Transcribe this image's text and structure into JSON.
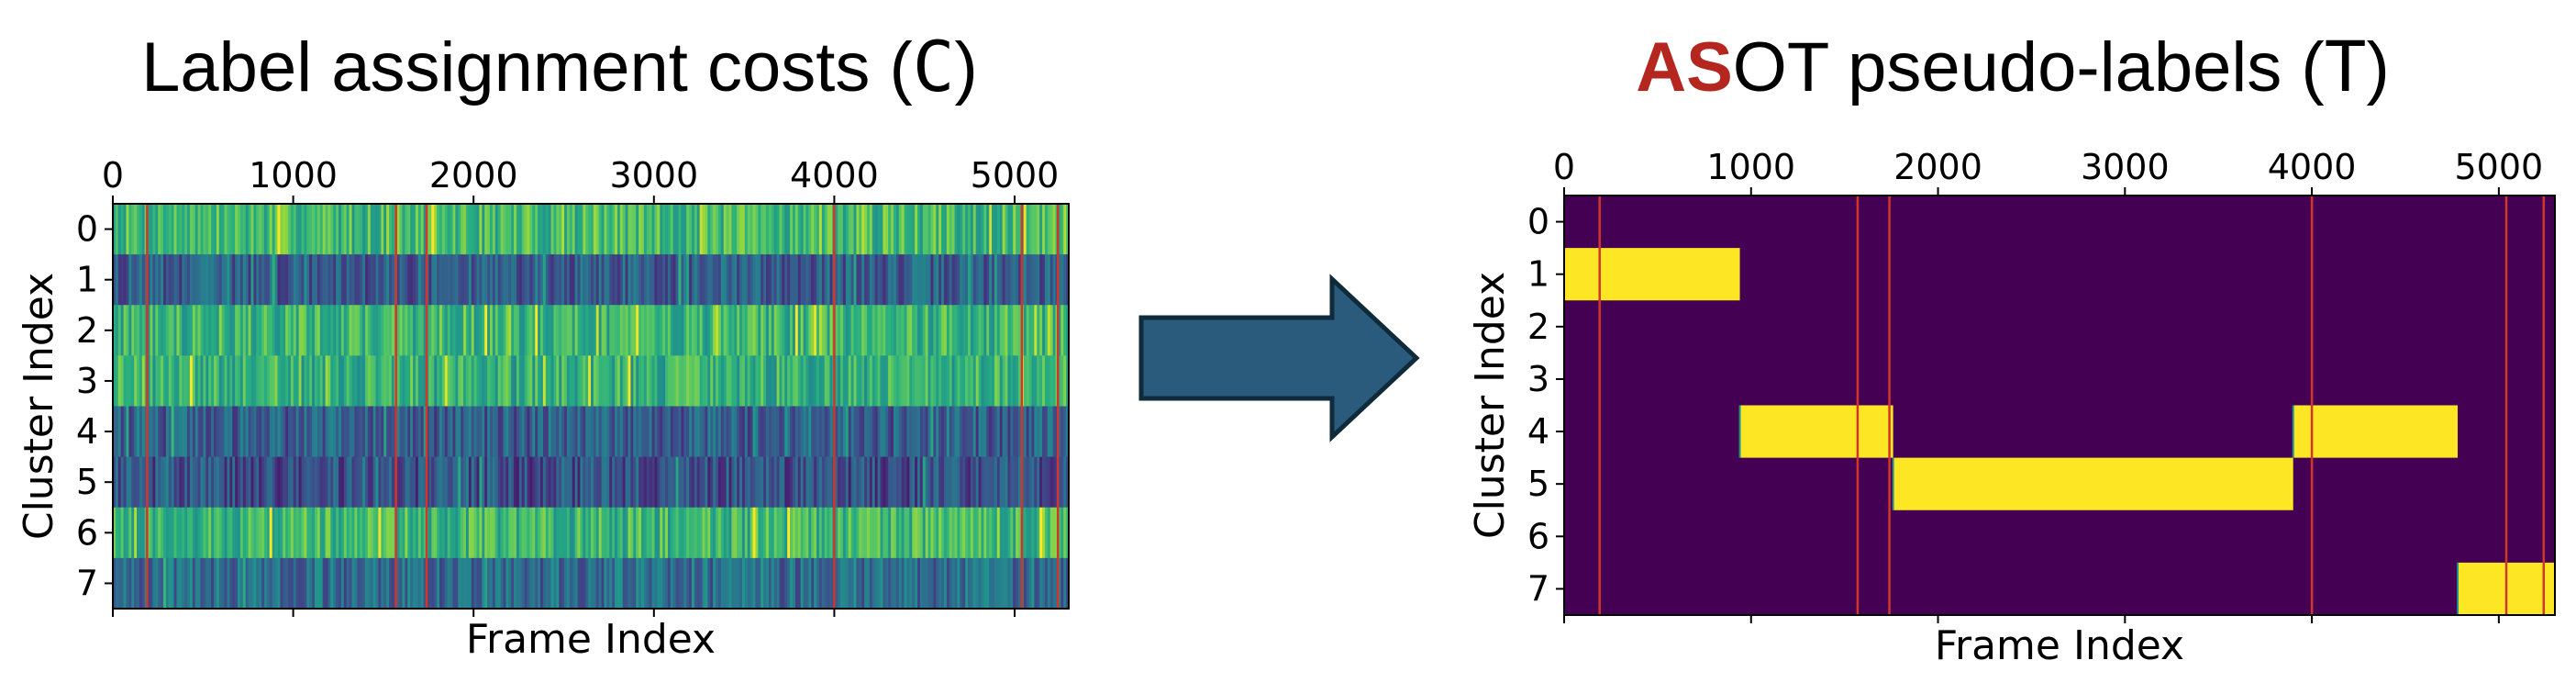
{
  "titles": {
    "left": {
      "main": "Label assignment costs (",
      "symbol": "C",
      "close": ")"
    },
    "right": {
      "highlight": "AS",
      "main": "OT pseudo-labels (",
      "symbol": "T",
      "close": ")"
    }
  },
  "colors": {
    "highlight": "#b5261e",
    "arrow": "#2b5b7c",
    "arrow_stroke": "#0f2a3a",
    "segment_line": "#d2352a",
    "viridis_dark": "#440154",
    "viridis_yellow": "#fde725",
    "viridis_mid": "#21918c"
  },
  "chart_data": [
    {
      "type": "heatmap",
      "title": "Label assignment costs (C)",
      "xlabel": "Frame Index",
      "ylabel": "Cluster Index",
      "xlim": [
        0,
        5300
      ],
      "xticks": [
        0,
        1000,
        2000,
        3000,
        4000,
        5000
      ],
      "yticks": [
        0,
        1,
        2,
        3,
        4,
        5,
        6,
        7
      ],
      "x_axis_position": "top",
      "colormap": "viridis",
      "row_mean_intensity": [
        0.68,
        0.3,
        0.66,
        0.64,
        0.3,
        0.25,
        0.66,
        0.36
      ],
      "segment_boundaries": [
        190,
        1570,
        1740,
        4000,
        5040,
        5240
      ]
    },
    {
      "type": "heatmap",
      "title": "ASOT pseudo-labels (T)",
      "xlabel": "Frame Index",
      "ylabel": "Cluster Index",
      "xlim": [
        0,
        5300
      ],
      "xticks": [
        0,
        1000,
        2000,
        3000,
        4000,
        5000
      ],
      "yticks": [
        0,
        1,
        2,
        3,
        4,
        5,
        6,
        7
      ],
      "x_axis_position": "top",
      "colormap": "viridis",
      "assignments": [
        {
          "cluster": 1,
          "start": 0,
          "end": 940
        },
        {
          "cluster": 4,
          "start": 940,
          "end": 1760
        },
        {
          "cluster": 5,
          "start": 1760,
          "end": 3900
        },
        {
          "cluster": 4,
          "start": 3900,
          "end": 4780
        },
        {
          "cluster": 7,
          "start": 4780,
          "end": 5300
        }
      ],
      "segment_boundaries": [
        190,
        1570,
        1740,
        4000,
        5040,
        5240
      ]
    }
  ]
}
